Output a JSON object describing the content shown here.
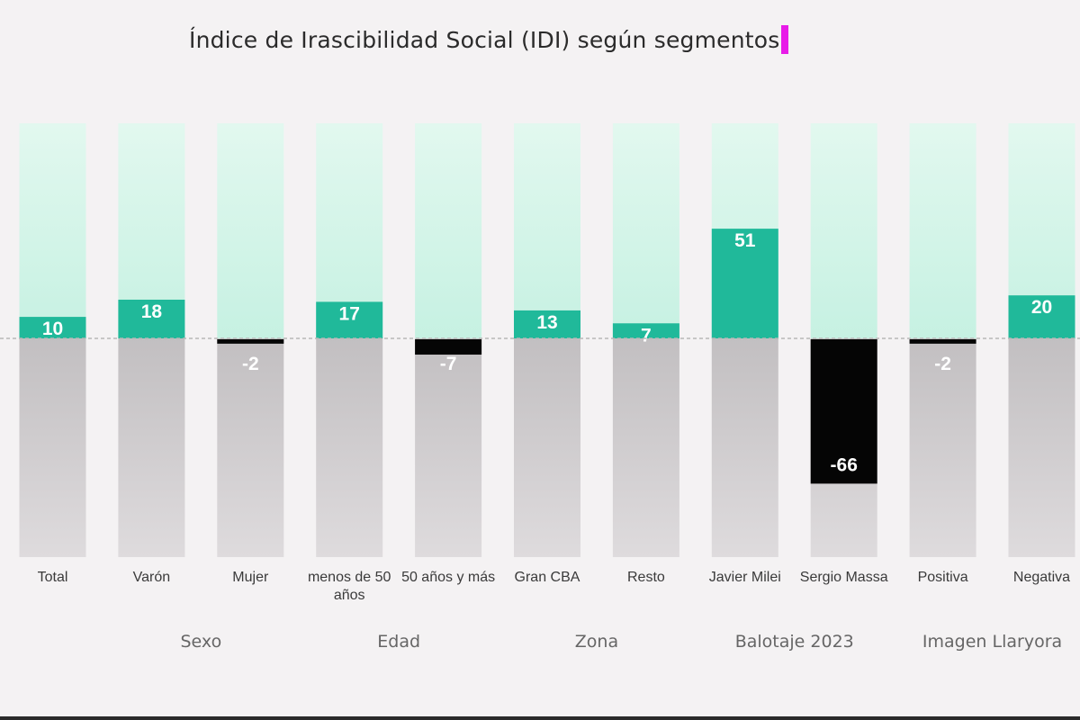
{
  "chart_data": {
    "type": "bar",
    "title": "Índice de Irascibilidad Social (IDI) según segmentos",
    "categories": [
      "Total",
      "Varón",
      "Mujer",
      "menos de 50 años",
      "50 años y más",
      "Gran CBA",
      "Resto",
      "Javier Milei",
      "Sergio Massa",
      "Positiva",
      "Negativa"
    ],
    "values": [
      10,
      18,
      -2,
      17,
      -7,
      13,
      7,
      51,
      -66,
      -2,
      20
    ],
    "ylim": [
      -100,
      100
    ],
    "groups": [
      {
        "label": "Sexo",
        "categories": [
          "Varón",
          "Mujer"
        ]
      },
      {
        "label": "Edad",
        "categories": [
          "menos de 50 años",
          "50 años y más"
        ]
      },
      {
        "label": "Zona",
        "categories": [
          "Gran CBA",
          "Resto"
        ]
      },
      {
        "label": "Balotaje 2023",
        "categories": [
          "Javier Milei",
          "Sergio Massa"
        ]
      },
      {
        "label": "Imagen Llaryora",
        "categories": [
          "Positiva",
          "Negativa"
        ]
      }
    ],
    "colors": {
      "positive": "#20b99a",
      "negative": "#050505",
      "positive_track": "#c6f1e2",
      "negative_track": "#c2bfc1",
      "zero_line": "#b8b8b8"
    }
  }
}
